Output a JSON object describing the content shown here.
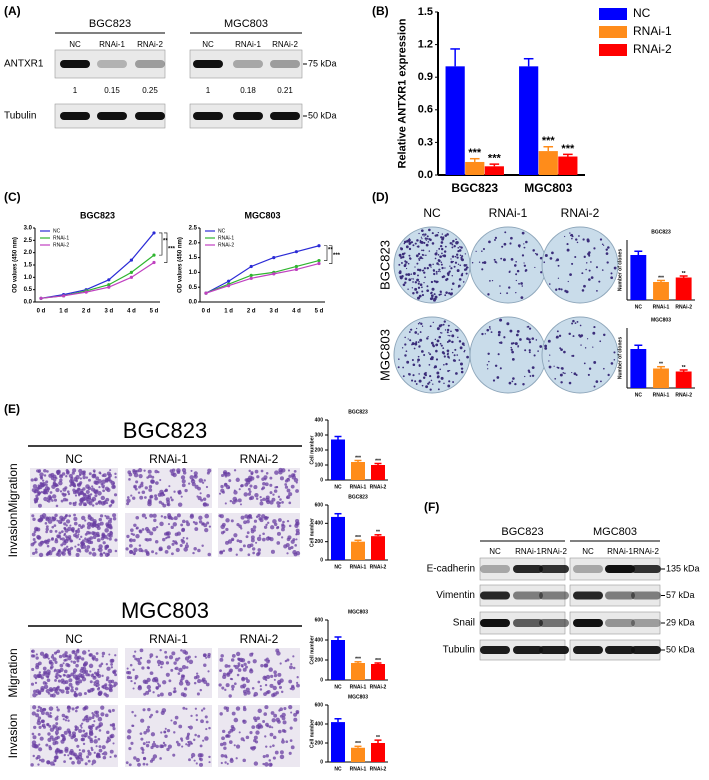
{
  "panels": {
    "A": {
      "label": "(A)",
      "groups": [
        "BGC823",
        "MGC803"
      ],
      "lanes": [
        "NC",
        "RNAi-1",
        "RNAi-2"
      ],
      "rows": [
        "ANTXR1",
        "Tubulin"
      ],
      "sizes": [
        "75 kDa",
        "50 kDa"
      ],
      "quant": [
        [
          1,
          0.15,
          0.25
        ],
        [
          1,
          0.18,
          0.21
        ]
      ]
    },
    "B": {
      "label": "(B)",
      "chart": {
        "type": "bar",
        "ylabel": "Relative ANTXR1 expression",
        "categories": [
          "BGC823",
          "MGC803"
        ],
        "series": [
          {
            "name": "NC",
            "color": "#0000ff",
            "values": [
              1,
              1
            ],
            "errors": [
              0.16,
              0.07
            ]
          },
          {
            "name": "RNAi-1",
            "color": "#ff8c1a",
            "values": [
              0.12,
              0.22
            ],
            "errors": [
              0.03,
              0.04
            ],
            "sig": [
              "***",
              "***"
            ]
          },
          {
            "name": "RNAi-2",
            "color": "#ff0000",
            "values": [
              0.08,
              0.17
            ],
            "errors": [
              0.02,
              0.02
            ],
            "sig": [
              "***",
              "***"
            ]
          }
        ],
        "ylim": [
          0,
          1.5
        ],
        "yticks": [
          {
            "value": 0,
            "label": "0.0"
          },
          0.3,
          0.6,
          0.9,
          1.2,
          1.5
        ],
        "legend": "top-right"
      }
    },
    "C": {
      "label": "(C)",
      "charts": [
        {
          "type": "line",
          "title": "BGC823",
          "ylabel": "OD values (450 nm)",
          "categories": [
            "0 d",
            "1 d",
            "2 d",
            "3 d",
            "4 d",
            "5 d"
          ],
          "series": [
            {
              "name": "NC",
              "color": "#2b2bd6",
              "values": [
                0.15,
                0.3,
                0.5,
                0.9,
                1.7,
                2.8
              ]
            },
            {
              "name": "RNAi-1",
              "color": "#2fb52f",
              "values": [
                0.15,
                0.25,
                0.45,
                0.7,
                1.2,
                1.9
              ]
            },
            {
              "name": "RNAi-2",
              "color": "#c040c0",
              "values": [
                0.15,
                0.25,
                0.4,
                0.6,
                1.0,
                1.6
              ]
            }
          ],
          "ylim": [
            0,
            3
          ],
          "yticks": [
            {
              "value": 0,
              "label": "0.0"
            },
            0.5,
            {
              "value": 1,
              "label": "1.0"
            },
            1.5,
            {
              "value": 2,
              "label": "2.0"
            },
            2.5,
            {
              "value": 3,
              "label": "3.0"
            }
          ],
          "sig": [
            "**",
            "***"
          ],
          "legend": "top-left"
        },
        {
          "type": "line",
          "title": "MGC803",
          "ylabel": "OD values (450 nm)",
          "categories": [
            "0 d",
            "1 d",
            "2 d",
            "3 d",
            "4 d",
            "5 d"
          ],
          "series": [
            {
              "name": "NC",
              "color": "#2b2bd6",
              "values": [
                0.3,
                0.7,
                1.2,
                1.5,
                1.7,
                1.9
              ]
            },
            {
              "name": "RNAi-1",
              "color": "#2fb52f",
              "values": [
                0.3,
                0.6,
                0.9,
                1.0,
                1.2,
                1.4
              ]
            },
            {
              "name": "RNAi-2",
              "color": "#c040c0",
              "values": [
                0.3,
                0.55,
                0.8,
                0.95,
                1.1,
                1.3
              ]
            }
          ],
          "ylim": [
            0,
            2.5
          ],
          "yticks": [
            {
              "value": 0,
              "label": "0.0"
            },
            0.5,
            {
              "value": 1,
              "label": "1.0"
            },
            1.5,
            {
              "value": 2,
              "label": "2.0"
            },
            2.5
          ],
          "sig": [
            "**",
            "***"
          ],
          "legend": "top-left"
        }
      ]
    },
    "D": {
      "label": "(D)",
      "columns": [
        "NC",
        "RNAi-1",
        "RNAi-2"
      ],
      "rows": [
        "BGC823",
        "MGC803"
      ],
      "charts": [
        {
          "type": "bar",
          "title": "BGC823",
          "ylabel": "Number of clones",
          "categories": [
            "NC",
            "RNAi-1",
            "RNAi-2"
          ],
          "colors": [
            "#0000ff",
            "#ff8c1a",
            "#ff0000"
          ],
          "values": [
            300,
            120,
            150
          ],
          "errors": [
            25,
            10,
            10
          ],
          "sig": [
            null,
            "***",
            "**"
          ],
          "ylim": [
            0,
            400
          ]
        },
        {
          "type": "bar",
          "title": "MGC803",
          "ylabel": "Number of clones",
          "categories": [
            "NC",
            "RNAi-1",
            "RNAi-2"
          ],
          "colors": [
            "#0000ff",
            "#ff8c1a",
            "#ff0000"
          ],
          "values": [
            260,
            130,
            110
          ],
          "errors": [
            25,
            12,
            10
          ],
          "sig": [
            null,
            "**",
            "**"
          ],
          "ylim": [
            0,
            400
          ]
        }
      ]
    },
    "E": {
      "label": "(E)",
      "blocks": [
        {
          "title": "BGC823",
          "columns": [
            "NC",
            "RNAi-1",
            "RNAi-2"
          ],
          "rows": [
            "Migration",
            "Invasion"
          ],
          "charts": [
            {
              "type": "bar",
              "title": "BGC823",
              "ylabel": "Cell number",
              "categories": [
                "NC",
                "RNAi-1",
                "RNAi-2"
              ],
              "colors": [
                "#0000ff",
                "#ff8c1a",
                "#ff0000"
              ],
              "values": [
                270,
                120,
                100
              ],
              "errors": [
                20,
                10,
                10
              ],
              "sig": [
                null,
                "***",
                "***"
              ],
              "ylim": [
                0,
                400
              ],
              "yticks": [
                0,
                100,
                200,
                300,
                400
              ]
            },
            {
              "type": "bar",
              "title": "BGC823",
              "ylabel": "Cell number",
              "categories": [
                "NC",
                "RNAi-1",
                "RNAi-2"
              ],
              "colors": [
                "#0000ff",
                "#ff8c1a",
                "#ff0000"
              ],
              "values": [
                470,
                200,
                260
              ],
              "errors": [
                35,
                15,
                15
              ],
              "sig": [
                null,
                "***",
                "**"
              ],
              "ylim": [
                0,
                600
              ],
              "yticks": [
                0,
                200,
                400,
                600
              ]
            }
          ]
        },
        {
          "title": "MGC803",
          "columns": [
            "NC",
            "RNAi-1",
            "RNAi-2"
          ],
          "rows": [
            "Migration",
            "Invasion"
          ],
          "charts": [
            {
              "type": "bar",
              "title": "MGC803",
              "ylabel": "Cell number",
              "categories": [
                "NC",
                "RNAi-1",
                "RNAi-2"
              ],
              "colors": [
                "#0000ff",
                "#ff8c1a",
                "#ff0000"
              ],
              "values": [
                400,
                170,
                160
              ],
              "errors": [
                30,
                12,
                10
              ],
              "sig": [
                null,
                "***",
                "***"
              ],
              "ylim": [
                0,
                600
              ],
              "yticks": [
                0,
                200,
                400,
                600
              ]
            },
            {
              "type": "bar",
              "title": "MGC803",
              "ylabel": "Cell number",
              "categories": [
                "NC",
                "RNAi-1",
                "RNAi-2"
              ],
              "colors": [
                "#0000ff",
                "#ff8c1a",
                "#ff0000"
              ],
              "values": [
                420,
                150,
                200
              ],
              "errors": [
                35,
                15,
                30
              ],
              "sig": [
                null,
                "***",
                "**"
              ],
              "ylim": [
                0,
                600
              ],
              "yticks": [
                0,
                200,
                400,
                600
              ]
            }
          ]
        }
      ]
    },
    "F": {
      "label": "(F)",
      "groups": [
        "BGC823",
        "MGC803"
      ],
      "lanes": [
        "NC",
        "RNAi-1",
        "RNAi-2"
      ],
      "rows": [
        "E-cadherin",
        "Vimentin",
        "Snail",
        "Tubulin"
      ],
      "sizes": [
        "135 kDa",
        "57 kDa",
        "29 kDa",
        "50 kDa"
      ]
    }
  }
}
